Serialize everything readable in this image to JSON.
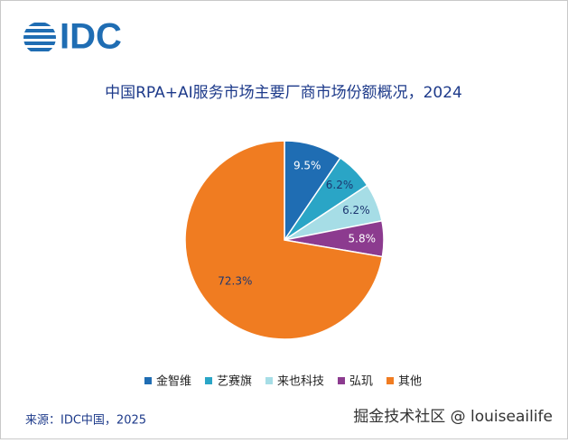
{
  "logo": {
    "text": "IDC"
  },
  "chart_data": {
    "type": "pie",
    "title": "中国RPA+AI服务市场主要厂商市场份额概况，2024",
    "categories": [
      "金智维",
      "艺赛旗",
      "来也科技",
      "弘玑",
      "其他"
    ],
    "values": [
      9.5,
      6.2,
      6.2,
      5.8,
      72.3
    ],
    "value_labels": [
      "9.5%",
      "6.2%",
      "6.2%",
      "5.8%",
      "72.3%"
    ],
    "colors": [
      "#1f6db3",
      "#2aa5c6",
      "#a6dde6",
      "#8c3b8f",
      "#f07c21"
    ],
    "label_colors": [
      "#ffffff",
      "#1d3770",
      "#1d3770",
      "#ffffff",
      "#1d3770"
    ],
    "legend": "bottom"
  },
  "source": "来源：IDC中国，2025",
  "watermark": "掘金技术社区 @ louiseailife"
}
